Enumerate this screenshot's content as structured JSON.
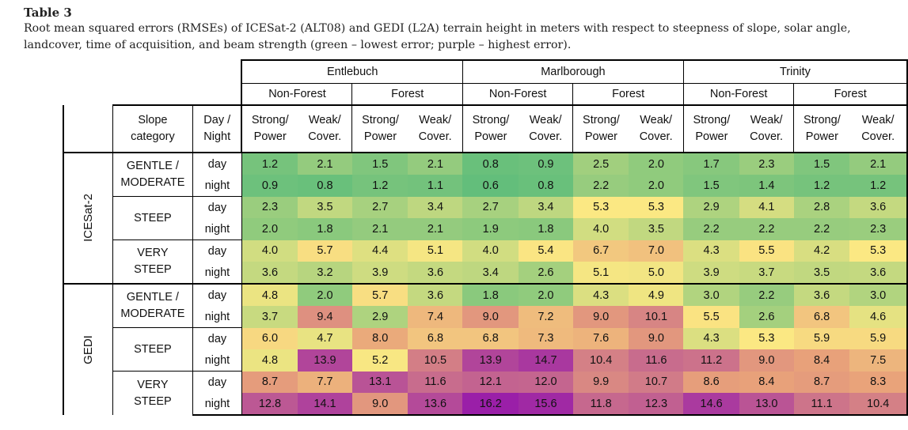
{
  "caption": {
    "label": "Table 3",
    "text": "Root mean squared errors (RMSEs) of ICESat-2 (ALT08) and GEDI (L2A) terrain height in meters with respect to steepness of slope, solar angle, landcover, time of acquisition, and beam strength (green – lowest error; purple – highest error)."
  },
  "headers": {
    "slope_category": [
      "Slope",
      "category"
    ],
    "day_night": [
      "Day /",
      "Night"
    ],
    "sites": [
      "Entlebuch",
      "Marlborough",
      "Trinity"
    ],
    "classes": [
      "Non-Forest",
      "Forest"
    ],
    "beams": [
      [
        "Strong/",
        "Power"
      ],
      [
        "Weak/",
        "Cover."
      ]
    ]
  },
  "table": {
    "sensors": [
      {
        "name": "ICESat-2",
        "groups": [
          {
            "slope": [
              "GENTLE /",
              "MODERATE"
            ],
            "rows": [
              {
                "time": "day",
                "values": [
                  "1.2",
                  "2.1",
                  "1.5",
                  "2.1",
                  "0.8",
                  "0.9",
                  "2.5",
                  "2.0",
                  "1.7",
                  "2.3",
                  "1.5",
                  "2.1"
                ]
              },
              {
                "time": "night",
                "values": [
                  "0.9",
                  "0.8",
                  "1.2",
                  "1.1",
                  "0.6",
                  "0.8",
                  "2.2",
                  "2.0",
                  "1.5",
                  "1.4",
                  "1.2",
                  "1.2"
                ]
              }
            ]
          },
          {
            "slope": [
              "STEEP"
            ],
            "rows": [
              {
                "time": "day",
                "values": [
                  "2.3",
                  "3.5",
                  "2.7",
                  "3.4",
                  "2.7",
                  "3.4",
                  "5.3",
                  "5.3",
                  "2.9",
                  "4.1",
                  "2.8",
                  "3.6"
                ]
              },
              {
                "time": "night",
                "values": [
                  "2.0",
                  "1.8",
                  "2.1",
                  "2.1",
                  "1.9",
                  "1.8",
                  "4.0",
                  "3.5",
                  "2.2",
                  "2.2",
                  "2.2",
                  "2.3"
                ]
              }
            ]
          },
          {
            "slope": [
              "VERY",
              "STEEP"
            ],
            "rows": [
              {
                "time": "day",
                "values": [
                  "4.0",
                  "5.7",
                  "4.4",
                  "5.1",
                  "4.0",
                  "5.4",
                  "6.7",
                  "7.0",
                  "4.3",
                  "5.5",
                  "4.2",
                  "5.3"
                ]
              },
              {
                "time": "night",
                "values": [
                  "3.6",
                  "3.2",
                  "3.9",
                  "3.6",
                  "3.4",
                  "2.6",
                  "5.1",
                  "5.0",
                  "3.9",
                  "3.7",
                  "3.5",
                  "3.6"
                ]
              }
            ]
          }
        ]
      },
      {
        "name": "GEDI",
        "groups": [
          {
            "slope": [
              "GENTLE /",
              "MODERATE"
            ],
            "rows": [
              {
                "time": "day",
                "values": [
                  "4.8",
                  "2.0",
                  "5.7",
                  "3.6",
                  "1.8",
                  "2.0",
                  "4.3",
                  "4.9",
                  "3.0",
                  "2.2",
                  "3.6",
                  "3.0"
                ]
              },
              {
                "time": "night",
                "values": [
                  "3.7",
                  "9.4",
                  "2.9",
                  "7.4",
                  "9.0",
                  "7.2",
                  "9.0",
                  "10.1",
                  "5.5",
                  "2.6",
                  "6.8",
                  "4.6"
                ]
              }
            ]
          },
          {
            "slope": [
              "STEEP"
            ],
            "rows": [
              {
                "time": "day",
                "values": [
                  "6.0",
                  "4.7",
                  "8.0",
                  "6.8",
                  "6.8",
                  "7.3",
                  "7.6",
                  "9.0",
                  "4.3",
                  "5.3",
                  "5.9",
                  "5.9"
                ]
              },
              {
                "time": "night",
                "values": [
                  "4.8",
                  "13.9",
                  "5.2",
                  "10.5",
                  "13.9",
                  "14.7",
                  "10.4",
                  "11.6",
                  "11.2",
                  "9.0",
                  "8.4",
                  "7.5"
                ]
              }
            ]
          },
          {
            "slope": [
              "VERY",
              "STEEP"
            ],
            "rows": [
              {
                "time": "day",
                "values": [
                  "8.7",
                  "7.7",
                  "13.1",
                  "11.6",
                  "12.1",
                  "12.0",
                  "9.9",
                  "10.7",
                  "8.6",
                  "8.4",
                  "8.7",
                  "8.3"
                ]
              },
              {
                "time": "night",
                "values": [
                  "12.8",
                  "14.1",
                  "9.0",
                  "13.6",
                  "16.2",
                  "15.6",
                  "11.8",
                  "12.3",
                  "14.6",
                  "13.0",
                  "11.1",
                  "10.4"
                ]
              }
            ]
          }
        ]
      }
    ]
  },
  "color_scale": {
    "min_value": 0.6,
    "max_value": 16.2,
    "stops": [
      "#63be7b",
      "#fbe883",
      "#e8a17a",
      "#9a1fa8"
    ],
    "stop_positions": [
      0,
      0.3,
      0.5,
      1
    ]
  }
}
